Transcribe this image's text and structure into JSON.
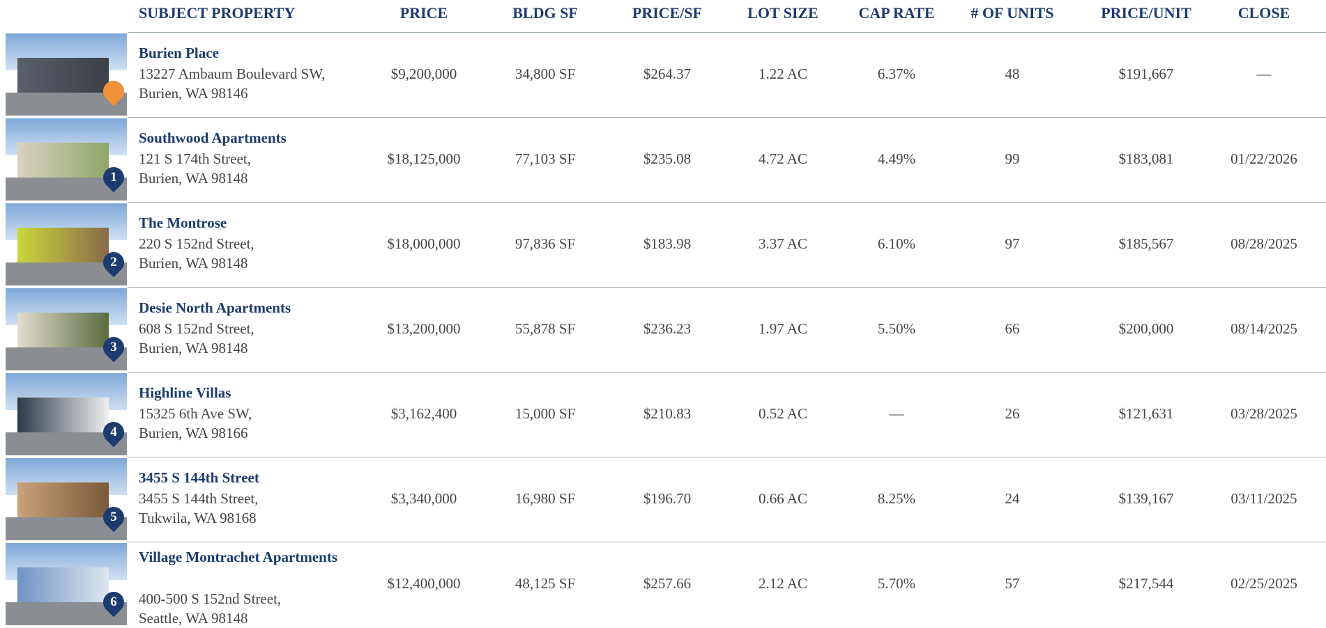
{
  "header": [
    "SUBJECT PROPERTY",
    "PRICE",
    "BLDG SF",
    "PRICE/SF",
    "LOT SIZE",
    "CAP RATE",
    "# OF UNITS",
    "PRICE/UNIT",
    "CLOSE"
  ],
  "rows": [
    {
      "name": "Burien Place",
      "address": [
        "13227 Ambaum Boulevard SW,",
        "Burien, WA 98146"
      ],
      "cells": [
        "$9,200,000",
        "34,800 SF",
        "$264.37",
        "1.22 AC",
        "6.37%",
        "48",
        "$191,667",
        "—"
      ]
    },
    {
      "marker": "1",
      "name": "Southwood Apartments",
      "address": [
        "121 S 174th Street,",
        "Burien, WA 98148"
      ],
      "cells": [
        "$18,125,000",
        "77,103 SF",
        "$235.08",
        "4.72 AC",
        "4.49%",
        "99",
        "$183,081",
        "01/22/2026"
      ]
    },
    {
      "marker": "2",
      "name": "The Montrose",
      "address": [
        "220 S 152nd Street,",
        "Burien, WA 98148"
      ],
      "cells": [
        "$18,000,000",
        "97,836 SF",
        "$183.98",
        "3.37 AC",
        "6.10%",
        "97",
        "$185,567",
        "08/28/2025"
      ]
    },
    {
      "marker": "3",
      "name": "Desie North Apartments",
      "address": [
        "608 S 152nd Street,",
        "Burien, WA 98148"
      ],
      "cells": [
        "$13,200,000",
        "55,878 SF",
        "$236.23",
        "1.97 AC",
        "5.50%",
        "66",
        "$200,000",
        "08/14/2025"
      ]
    },
    {
      "marker": "4",
      "name": "Highline Villas",
      "address": [
        "15325 6th Ave SW,",
        "Burien, WA 98166"
      ],
      "cells": [
        "$3,162,400",
        "15,000 SF",
        "$210.83",
        "0.52 AC",
        "—",
        "26",
        "$121,631",
        "03/28/2025"
      ]
    },
    {
      "marker": "5",
      "name": "3455 S 144th Street",
      "address": [
        "3455 S 144th Street,",
        "Tukwila, WA 98168"
      ],
      "cells": [
        "$3,340,000",
        "16,980 SF",
        "$196.70",
        "0.66 AC",
        "8.25%",
        "24",
        "$139,167",
        "03/11/2025"
      ]
    },
    {
      "marker": "6",
      "name": "Village Montrachet Apartments",
      "address": [
        "400-500 S 152nd Street,",
        "Seattle, WA 98148"
      ],
      "cells": [
        "$12,400,000",
        "48,125 SF",
        "$257.66",
        "2.12 AC",
        "5.70%",
        "57",
        "$217,544",
        "02/25/2025"
      ]
    }
  ]
}
